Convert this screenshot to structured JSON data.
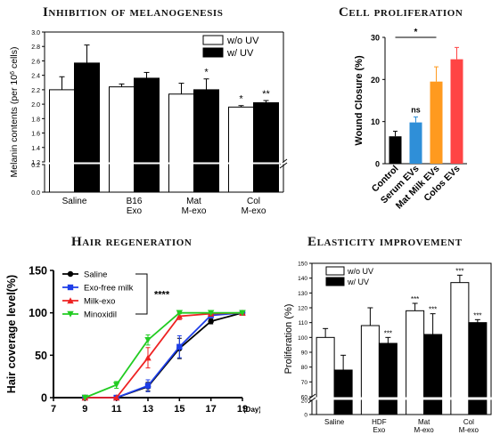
{
  "panels": {
    "melanin": {
      "title": "Inhibition of melanogenesis"
    },
    "proliferation": {
      "title": "Cell proliferation"
    },
    "hair": {
      "title": "Hair regeneration"
    },
    "elasticity": {
      "title": "Elasticity improvement"
    }
  },
  "chart_data": [
    {
      "type": "bar",
      "title": "Inhibition of melanogenesis",
      "xlabel": "",
      "ylabel": "Melanin contents (per 10^6 cells)",
      "categories": [
        "Saline",
        "B16 Exo",
        "Mat M-exo",
        "Col M-exo"
      ],
      "category_lines": [
        [
          "Saline"
        ],
        [
          "B16",
          "Exo"
        ],
        [
          "Mat",
          "M-exo"
        ],
        [
          "Col",
          "M-exo"
        ]
      ],
      "series": [
        {
          "name": "w/o UV",
          "color": "#ffffff",
          "values": [
            2.2,
            2.24,
            2.14,
            1.96
          ],
          "errors": [
            0.18,
            0.04,
            0.15,
            0.02
          ]
        },
        {
          "name": "w/ UV",
          "color": "#000000",
          "values": [
            2.57,
            2.36,
            2.2,
            2.02
          ],
          "errors": [
            0.25,
            0.08,
            0.15,
            0.03
          ]
        }
      ],
      "annotations": [
        {
          "category": "Mat M-exo",
          "series": "w/ UV",
          "text": "*"
        },
        {
          "category": "Col M-exo",
          "series": "w/o UV",
          "text": "*"
        },
        {
          "category": "Col M-exo",
          "series": "w/ UV",
          "text": "**"
        }
      ],
      "yticks": [
        "0.0",
        "0.2",
        "1.2",
        "1.4",
        "1.6",
        "1.8",
        "2.0",
        "2.2",
        "2.4",
        "2.6",
        "2.8",
        "3.0"
      ],
      "ylim": [
        0,
        3.0
      ],
      "axis_break": [
        0.2,
        1.2
      ],
      "legend": "top-right"
    },
    {
      "type": "bar",
      "title": "Cell proliferation",
      "xlabel": "",
      "ylabel": "Wound Closure (%)",
      "categories": [
        "Control",
        "Serum EVs",
        "Mat Milk EVs",
        "Colos EVs"
      ],
      "values": [
        6.5,
        9.8,
        19.5,
        24.8
      ],
      "errors": [
        1.2,
        1.3,
        3.5,
        2.8
      ],
      "colors": [
        "#000000",
        "#2f8fd8",
        "#ff9a1f",
        "#ff4444"
      ],
      "yticks": [
        "0",
        "10",
        "20",
        "30"
      ],
      "ylim": [
        0,
        30
      ],
      "annotations": [
        {
          "category": "Serum EVs",
          "text": "ns"
        },
        {
          "from": "Control",
          "to": "Mat Milk EVs",
          "text": "*"
        },
        {
          "from": "Control",
          "to": "Colos EVs",
          "text": "**"
        }
      ]
    },
    {
      "type": "line",
      "title": "Hair regeneration",
      "xlabel": "(Day)",
      "ylabel": "Hair coverage level(%)",
      "x": [
        7,
        9,
        11,
        13,
        15,
        17,
        19
      ],
      "xlim": [
        7,
        19
      ],
      "ylim": [
        0,
        150
      ],
      "yticks": [
        "0",
        "50",
        "100",
        "150"
      ],
      "series": [
        {
          "name": "Saline",
          "color": "#000000",
          "marker": "circle",
          "x": [
            9,
            11,
            13,
            15,
            17,
            19
          ],
          "values": [
            0,
            0,
            13,
            58,
            90,
            100
          ],
          "errors": [
            0,
            0,
            5,
            12,
            3,
            0
          ]
        },
        {
          "name": "Exo-free milk",
          "color": "#1e3ee8",
          "marker": "square",
          "x": [
            9,
            11,
            13,
            15,
            17,
            19
          ],
          "values": [
            0,
            0,
            14,
            60,
            97,
            100
          ],
          "errors": [
            0,
            0,
            7,
            13,
            2,
            0
          ]
        },
        {
          "name": "Milk-exo",
          "color": "#ee2222",
          "marker": "triangle",
          "x": [
            9,
            11,
            13,
            15,
            17,
            19
          ],
          "values": [
            0,
            0,
            47,
            96,
            99,
            100
          ],
          "errors": [
            0,
            0,
            12,
            4,
            1,
            0
          ]
        },
        {
          "name": "Minoxidil",
          "color": "#22cc22",
          "marker": "triangle-down",
          "x": [
            9,
            11,
            13,
            15,
            17,
            19
          ],
          "values": [
            0,
            15,
            68,
            100,
            100,
            100
          ],
          "errors": [
            0,
            4,
            6,
            1,
            0,
            0
          ]
        }
      ],
      "significance": "****",
      "legend": "top-left"
    },
    {
      "type": "bar",
      "title": "Elasticity improvement",
      "xlabel": "",
      "ylabel": "Proliferation (%)",
      "categories": [
        "Saline",
        "HDF Exo",
        "Mat M-exo",
        "Col M-exo"
      ],
      "category_lines": [
        [
          "Saline"
        ],
        [
          "HDF",
          "Exo"
        ],
        [
          "Mat",
          "M-exo"
        ],
        [
          "Col",
          "M-exo"
        ]
      ],
      "series": [
        {
          "name": "w/o UV",
          "color": "#ffffff",
          "values": [
            100,
            108,
            118,
            137
          ],
          "errors": [
            6,
            12,
            5,
            5
          ]
        },
        {
          "name": "w/ UV",
          "color": "#000000",
          "values": [
            78,
            96,
            102,
            110
          ],
          "errors": [
            10,
            4,
            14,
            2
          ]
        }
      ],
      "annotations": [
        {
          "category": "HDF Exo",
          "series": "w/ UV",
          "text": "***"
        },
        {
          "category": "Mat M-exo",
          "series": "w/o UV",
          "text": "***"
        },
        {
          "category": "Mat M-exo",
          "series": "w/ UV",
          "text": "***"
        },
        {
          "category": "Col M-exo",
          "series": "w/o UV",
          "text": "***"
        },
        {
          "category": "Col M-exo",
          "series": "w/ UV",
          "text": "***"
        }
      ],
      "yticks": [
        "0",
        "20",
        "60",
        "70",
        "80",
        "90",
        "100",
        "110",
        "120",
        "130",
        "140",
        "150"
      ],
      "ylim": [
        0,
        150
      ],
      "axis_break": [
        20,
        60
      ],
      "legend": "top-left"
    }
  ]
}
